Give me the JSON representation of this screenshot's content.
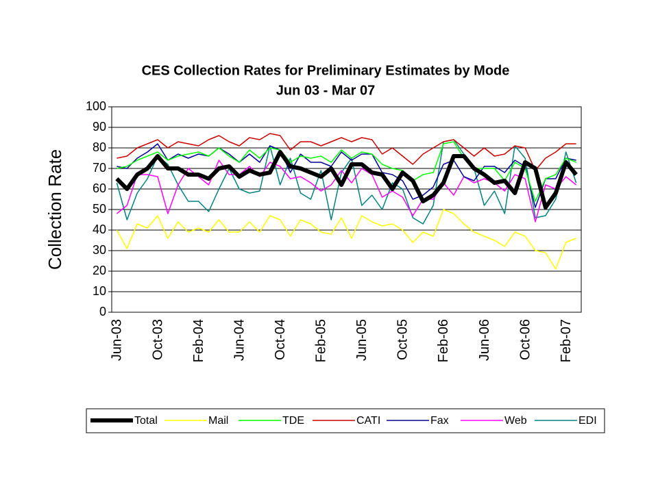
{
  "chart_data": {
    "type": "line",
    "title": "CES Collection Rates for Preliminary Estimates by Mode",
    "subtitle": "Jun 03 - Mar 07",
    "y_label": "Collection Rate",
    "categories": [
      "Jun-03",
      null,
      null,
      null,
      "Oct-03",
      null,
      null,
      null,
      "Feb-04",
      null,
      null,
      null,
      "Jun-04",
      null,
      null,
      null,
      "Oct-04",
      null,
      null,
      null,
      "Feb-05",
      null,
      null,
      null,
      "Jun-05",
      null,
      null,
      null,
      "Oct-05",
      null,
      null,
      null,
      "Feb-06",
      null,
      null,
      null,
      "Jun-06",
      null,
      null,
      null,
      "Oct-06",
      null,
      null,
      null,
      "Feb-07",
      null
    ],
    "ylim": [
      0,
      100
    ],
    "yticks": [
      0,
      10,
      20,
      30,
      40,
      50,
      60,
      70,
      80,
      90,
      100
    ],
    "grid": true,
    "legend": "bottom",
    "series": [
      {
        "name": "Total",
        "color": "#000000",
        "width": 6,
        "values": [
          65,
          60,
          67,
          70,
          76,
          70,
          70,
          67,
          67,
          65,
          70,
          71,
          66,
          69,
          67,
          68,
          78,
          71,
          70,
          68,
          66,
          70,
          62,
          72,
          72,
          68,
          67,
          60,
          68,
          64,
          54,
          57,
          63,
          76,
          76,
          70,
          67,
          63,
          64,
          58,
          73,
          70,
          51,
          58,
          73,
          67
        ]
      },
      {
        "name": "Mail",
        "color": "#ffff00",
        "width": 1.5,
        "values": [
          40,
          31,
          43,
          41,
          47,
          36,
          44,
          39,
          41,
          39,
          45,
          39,
          39,
          44,
          39,
          47,
          45,
          37,
          45,
          43,
          39,
          38,
          46,
          36,
          47,
          44,
          42,
          43,
          40,
          34,
          39,
          37,
          50,
          48,
          43,
          39,
          37,
          35,
          32,
          39,
          37,
          30,
          29,
          21,
          34,
          36
        ]
      },
      {
        "name": "TDE",
        "color": "#00ff00",
        "width": 1.5,
        "values": [
          70,
          71,
          74,
          76,
          78,
          74,
          76,
          77,
          78,
          76,
          80,
          76,
          73,
          79,
          75,
          80,
          79,
          73,
          76,
          75,
          76,
          73,
          79,
          75,
          78,
          77,
          72,
          70,
          69,
          64,
          67,
          68,
          82,
          83,
          75,
          70,
          70,
          70,
          64,
          73,
          70,
          54,
          65,
          67,
          75,
          73
        ]
      },
      {
        "name": "CATI",
        "color": "#cc0000",
        "width": 1.5,
        "values": [
          75,
          76,
          80,
          82,
          84,
          80,
          83,
          82,
          81,
          84,
          86,
          83,
          81,
          85,
          84,
          87,
          86,
          79,
          83,
          83,
          81,
          83,
          85,
          83,
          85,
          84,
          77,
          80,
          76,
          72,
          77,
          80,
          83,
          84,
          80,
          76,
          80,
          76,
          77,
          81,
          80,
          69,
          75,
          78,
          82,
          82
        ]
      },
      {
        "name": "Fax",
        "color": "#000099",
        "width": 1.5,
        "values": [
          71,
          70,
          75,
          78,
          82,
          74,
          77,
          75,
          77,
          76,
          80,
          77,
          73,
          77,
          73,
          81,
          79,
          68,
          77,
          73,
          73,
          71,
          78,
          74,
          77,
          77,
          68,
          67,
          64,
          55,
          57,
          61,
          72,
          74,
          66,
          64,
          71,
          71,
          68,
          74,
          71,
          51,
          65,
          65,
          75,
          74
        ]
      },
      {
        "name": "Web",
        "color": "#ff00ff",
        "width": 1.5,
        "values": [
          48,
          52,
          67,
          67,
          66,
          48,
          62,
          70,
          66,
          62,
          74,
          67,
          67,
          71,
          66,
          73,
          71,
          65,
          66,
          63,
          59,
          62,
          69,
          63,
          70,
          67,
          56,
          59,
          56,
          47,
          55,
          55,
          63,
          57,
          66,
          63,
          65,
          63,
          59,
          67,
          65,
          44,
          62,
          60,
          66,
          62
        ]
      },
      {
        "name": "EDI",
        "color": "#008080",
        "width": 1.5,
        "values": [
          63,
          45,
          58,
          65,
          76,
          72,
          62,
          54,
          54,
          49,
          60,
          70,
          60,
          58,
          59,
          81,
          62,
          75,
          58,
          55,
          69,
          45,
          68,
          75,
          52,
          57,
          50,
          63,
          60,
          46,
          43,
          52,
          83,
          84,
          77,
          70,
          52,
          59,
          48,
          81,
          75,
          46,
          47,
          55,
          78,
          63
        ]
      }
    ]
  }
}
